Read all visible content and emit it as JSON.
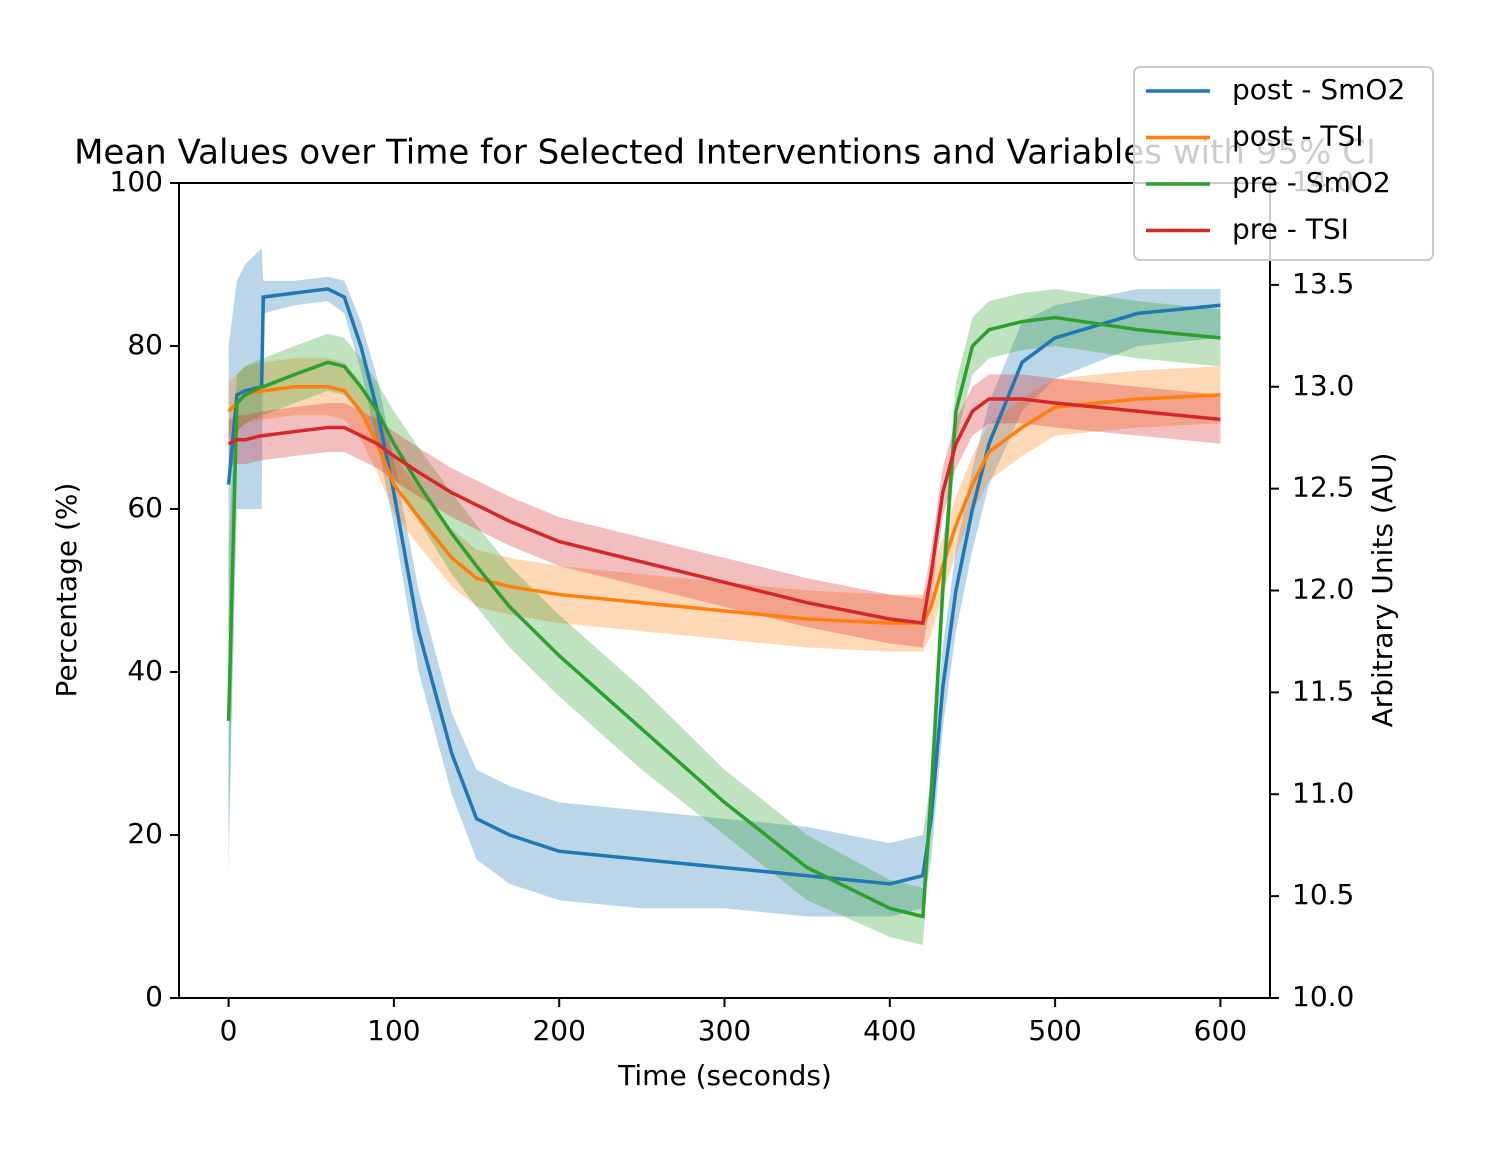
{
  "chart_data": {
    "type": "line",
    "title": "Mean Values over Time for Selected Interventions and Variables with 95% CI",
    "x_label": "Time (seconds)",
    "y_label": "Percentage (%)",
    "y2_label": "Arbitrary Units (AU)",
    "x": [
      0,
      5,
      10,
      20,
      21,
      40,
      60,
      70,
      80,
      90,
      100,
      115,
      135,
      150,
      170,
      200,
      250,
      300,
      350,
      400,
      420,
      425,
      432,
      440,
      450,
      460,
      480,
      500,
      550,
      600
    ],
    "series": [
      {
        "name": "post - SmO2",
        "color": "#1f77b4",
        "values": [
          63,
          74,
          74.5,
          75,
          86,
          86.5,
          87,
          86,
          80,
          72,
          62,
          45,
          30,
          22,
          20,
          18,
          17,
          16,
          15,
          14,
          15,
          22,
          38,
          50,
          60,
          68,
          78,
          81,
          84,
          85
        ],
        "ci_lower": [
          20,
          60,
          60,
          60,
          84,
          85,
          85.5,
          84,
          77,
          68,
          58,
          40,
          25,
          17,
          14,
          12,
          11,
          11,
          10,
          10,
          11,
          17,
          33,
          45,
          55,
          63,
          72,
          76,
          80,
          81
        ],
        "ci_upper": [
          80,
          88,
          90,
          92,
          88,
          88,
          88.5,
          88,
          83,
          76,
          66,
          50,
          35,
          28,
          26,
          24,
          23,
          22,
          21,
          19,
          20,
          27,
          43,
          55,
          65,
          73,
          83,
          85,
          87,
          87
        ]
      },
      {
        "name": "post - TSI",
        "color": "#ff7f0e",
        "values": [
          72,
          73,
          74,
          74.5,
          74.5,
          75,
          75,
          74.5,
          72,
          68,
          63,
          59,
          54,
          51.5,
          50.5,
          49.5,
          48.5,
          47.5,
          46.5,
          46,
          46,
          48,
          53,
          58,
          63,
          67,
          70,
          72.5,
          73.5,
          74
        ],
        "ci_lower": [
          68.5,
          69.5,
          70.5,
          71,
          71,
          71.5,
          71.5,
          71,
          68.5,
          64.5,
          59.5,
          55.5,
          50.5,
          48,
          47,
          46,
          45,
          44,
          43,
          42.5,
          42.5,
          44.5,
          49.5,
          54.5,
          59.5,
          63.5,
          66.5,
          69,
          70,
          70.5
        ],
        "ci_upper": [
          75.5,
          76.5,
          77.5,
          78,
          78,
          78.5,
          78.5,
          78,
          75.5,
          71.5,
          66.5,
          62.5,
          57.5,
          55,
          54,
          53,
          52,
          51,
          50,
          49.5,
          49.5,
          51.5,
          56.5,
          61.5,
          66.5,
          70.5,
          73.5,
          76,
          77,
          77.5
        ]
      },
      {
        "name": "pre - SmO2",
        "color": "#2ca02c",
        "values": [
          34,
          73,
          74,
          75,
          75,
          76.5,
          78,
          77.5,
          75,
          72,
          68,
          63,
          57,
          53,
          48,
          42,
          33,
          24,
          16,
          11,
          10,
          25,
          50,
          72,
          80,
          82,
          83,
          83.5,
          82,
          81
        ],
        "ci_lower": [
          15,
          69.5,
          70.5,
          71.5,
          71.5,
          73,
          74.5,
          74,
          71.5,
          68.5,
          64,
          58.5,
          52,
          48,
          43,
          37,
          28,
          20,
          12,
          7.5,
          6.5,
          21,
          46,
          68.5,
          76.5,
          78.5,
          79.5,
          80,
          78.5,
          77.5
        ],
        "ci_upper": [
          55,
          76.5,
          77.5,
          78.5,
          78.5,
          80,
          81.5,
          81,
          78.5,
          75.5,
          72,
          67.5,
          62,
          58,
          53,
          47,
          38,
          28,
          20,
          14.5,
          13.5,
          29,
          54,
          75.5,
          83.5,
          85.5,
          86.5,
          87,
          85.5,
          84.5
        ]
      },
      {
        "name": "pre - TSI",
        "color": "#d62728",
        "values": [
          68,
          68.5,
          68.5,
          69,
          69,
          69.5,
          70,
          70,
          69,
          68,
          66.5,
          64.5,
          62,
          60.5,
          58.5,
          56,
          53.5,
          51,
          48.5,
          46.5,
          46,
          52,
          62,
          68,
          72,
          73.5,
          73.5,
          73,
          72,
          71
        ],
        "ci_lower": [
          65,
          65.5,
          65.5,
          66,
          66,
          66.5,
          67,
          67,
          66,
          65,
          63.5,
          61.5,
          59,
          57.5,
          55.5,
          53,
          50.5,
          48,
          45.5,
          43.5,
          43,
          49,
          59,
          65,
          69,
          70.5,
          70.5,
          70,
          69,
          68
        ],
        "ci_upper": [
          71,
          71.5,
          71.5,
          72,
          72,
          72.5,
          73,
          73,
          72,
          71,
          69.5,
          67.5,
          65,
          63.5,
          61.5,
          59,
          56.5,
          54,
          51.5,
          49.5,
          49,
          55,
          65,
          71,
          75,
          76.5,
          76.5,
          76,
          75,
          74
        ]
      }
    ],
    "xlim": [
      -30,
      630
    ],
    "xticks": [
      0,
      100,
      200,
      300,
      400,
      500,
      600
    ],
    "ylim": [
      0,
      100
    ],
    "yticks": [
      0,
      20,
      40,
      60,
      80,
      100
    ],
    "y2lim": [
      10,
      14
    ],
    "y2ticks": [
      {
        "value": 10,
        "label": "10.0"
      },
      10.5,
      {
        "value": 11,
        "label": "11.0"
      },
      11.5,
      {
        "value": 12,
        "label": "12.0"
      },
      12.5,
      {
        "value": 13,
        "label": "13.0"
      },
      13.5,
      {
        "value": 14,
        "label": "14.0"
      }
    ],
    "legend": "upper right",
    "band_opacity": 0.3
  }
}
